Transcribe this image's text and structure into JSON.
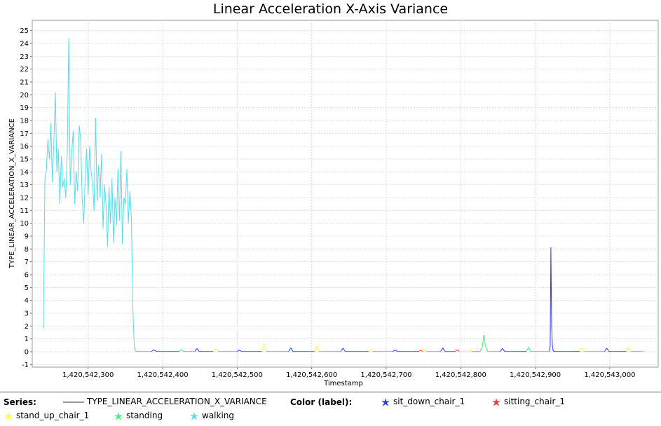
{
  "chart_data": {
    "type": "line",
    "title": "Linear Acceleration X-Axis Variance",
    "xlabel": "Timestamp",
    "ylabel": "TYPE_LINEAR_ACCELERATION_X_VARIANCE",
    "xlim": [
      1420542225,
      1420543065
    ],
    "ylim": [
      -1.2,
      25.8
    ],
    "x_ticks": [
      "1,420,542,300",
      "1,420,542,400",
      "1,420,542,500",
      "1,420,542,600",
      "1,420,542,700",
      "1,420,542,800",
      "1,420,542,900",
      "1,420,543,000"
    ],
    "x_tick_values": [
      1420542300,
      1420542400,
      1420542500,
      1420542600,
      1420542700,
      1420542800,
      1420542900,
      1420543000
    ],
    "y_ticks": [
      -1,
      0,
      1,
      2,
      3,
      4,
      5,
      6,
      7,
      8,
      9,
      10,
      11,
      12,
      13,
      14,
      15,
      16,
      17,
      18,
      19,
      20,
      21,
      22,
      23,
      24,
      25
    ],
    "grid": true,
    "legend_position": "bottom",
    "series_name": "TYPE_LINEAR_ACCELERATION_X_VARIANCE",
    "color_labels": [
      {
        "label": "sit_down_chair_1",
        "color": "#3333ff"
      },
      {
        "label": "sitting_chair_1",
        "color": "#ff3333"
      },
      {
        "label": "stand_up_chair_1",
        "color": "#ffff33"
      },
      {
        "label": "standing",
        "color": "#33ff77"
      },
      {
        "label": "walking",
        "color": "#55ddee"
      }
    ],
    "segments": [
      {
        "label": "walking",
        "x": [
          1420542240,
          1420542242,
          1420542244,
          1420542246,
          1420542248,
          1420542250,
          1420542252,
          1420542254,
          1420542256,
          1420542258,
          1420542260,
          1420542262,
          1420542264,
          1420542266,
          1420542268,
          1420542270,
          1420542272,
          1420542274,
          1420542276,
          1420542278,
          1420542280,
          1420542282,
          1420542284,
          1420542286,
          1420542288,
          1420542290,
          1420542292,
          1420542294,
          1420542296,
          1420542298,
          1420542300,
          1420542302,
          1420542304,
          1420542306,
          1420542308,
          1420542310,
          1420542312,
          1420542314,
          1420542316,
          1420542318,
          1420542320,
          1420542322,
          1420542324,
          1420542326,
          1420542328,
          1420542330,
          1420542332,
          1420542334,
          1420542336,
          1420542338,
          1420542340,
          1420542342,
          1420542344,
          1420542346,
          1420542348,
          1420542350,
          1420542352,
          1420542354,
          1420542356,
          1420542358,
          1420542360,
          1420542361,
          1420542362,
          1420542363,
          1420542364
        ],
        "y": [
          1.8,
          13.5,
          14.2,
          16.5,
          15.0,
          17.8,
          13.2,
          16.2,
          20.2,
          14.0,
          15.8,
          11.5,
          15.2,
          12.8,
          13.5,
          12.0,
          15.5,
          24.4,
          13.0,
          15.5,
          17.2,
          11.5,
          14.0,
          12.5,
          17.6,
          16.5,
          12.0,
          10.0,
          13.5,
          15.8,
          12.2,
          16.0,
          14.0,
          13.2,
          11.0,
          18.2,
          11.8,
          14.5,
          12.0,
          15.4,
          9.6,
          13.0,
          11.5,
          8.2,
          12.8,
          10.0,
          13.5,
          8.5,
          12.0,
          9.8,
          14.2,
          10.2,
          15.6,
          8.4,
          12.0,
          11.5,
          14.2,
          10.0,
          12.5,
          10.5,
          3.5,
          1.8,
          0.5,
          0.1,
          0.02
        ]
      },
      {
        "label": "standing",
        "x": [
          1420542364,
          1420542385
        ],
        "y": [
          0.02,
          0.02
        ]
      },
      {
        "label": "sit_down_chair_1",
        "x": [
          1420542385,
          1420542388,
          1420542392
        ],
        "y": [
          0.02,
          0.15,
          0.02
        ]
      },
      {
        "label": "sitting_chair_1",
        "x": [
          1420542392,
          1420542422
        ],
        "y": [
          0.02,
          0.02
        ]
      },
      {
        "label": "standing",
        "x": [
          1420542422,
          1420542425,
          1420542428,
          1420542443
        ],
        "y": [
          0.02,
          0.15,
          0.02,
          0.02
        ]
      },
      {
        "label": "sit_down_chair_1",
        "x": [
          1420542443,
          1420542446,
          1420542449
        ],
        "y": [
          0.02,
          0.25,
          0.02
        ]
      },
      {
        "label": "sitting_chair_1",
        "x": [
          1420542449,
          1420542468
        ],
        "y": [
          0.02,
          0.02
        ]
      },
      {
        "label": "stand_up_chair_1",
        "x": [
          1420542468,
          1420542471,
          1420542474
        ],
        "y": [
          0.02,
          0.2,
          0.02
        ]
      },
      {
        "label": "standing",
        "x": [
          1420542474,
          1420542500
        ],
        "y": [
          0.02,
          0.02
        ]
      },
      {
        "label": "sit_down_chair_1",
        "x": [
          1420542500,
          1420542503,
          1420542506
        ],
        "y": [
          0.02,
          0.12,
          0.02
        ]
      },
      {
        "label": "sitting_chair_1",
        "x": [
          1420542506,
          1420542533
        ],
        "y": [
          0.02,
          0.02
        ]
      },
      {
        "label": "stand_up_chair_1",
        "x": [
          1420542533,
          1420542536,
          1420542539
        ],
        "y": [
          0.02,
          0.6,
          0.02
        ]
      },
      {
        "label": "standing",
        "x": [
          1420542539,
          1420542569
        ],
        "y": [
          0.02,
          0.02
        ]
      },
      {
        "label": "sit_down_chair_1",
        "x": [
          1420542569,
          1420542572,
          1420542575
        ],
        "y": [
          0.02,
          0.3,
          0.02
        ]
      },
      {
        "label": "sitting_chair_1",
        "x": [
          1420542575,
          1420542604
        ],
        "y": [
          0.02,
          0.02
        ]
      },
      {
        "label": "stand_up_chair_1",
        "x": [
          1420542604,
          1420542607,
          1420542610
        ],
        "y": [
          0.02,
          0.45,
          0.02
        ]
      },
      {
        "label": "standing",
        "x": [
          1420542610,
          1420542639
        ],
        "y": [
          0.02,
          0.02
        ]
      },
      {
        "label": "sit_down_chair_1",
        "x": [
          1420542639,
          1420542642,
          1420542645
        ],
        "y": [
          0.02,
          0.28,
          0.02
        ]
      },
      {
        "label": "sitting_chair_1",
        "x": [
          1420542645,
          1420542676
        ],
        "y": [
          0.02,
          0.02
        ]
      },
      {
        "label": "stand_up_chair_1",
        "x": [
          1420542676,
          1420542679,
          1420542682
        ],
        "y": [
          0.02,
          0.1,
          0.02
        ]
      },
      {
        "label": "standing",
        "x": [
          1420542682,
          1420542709
        ],
        "y": [
          0.02,
          0.02
        ]
      },
      {
        "label": "sit_down_chair_1",
        "x": [
          1420542709,
          1420542712,
          1420542715
        ],
        "y": [
          0.02,
          0.12,
          0.02
        ]
      },
      {
        "label": "sitting_chair_1",
        "x": [
          1420542715,
          1420542743,
          1420542746,
          1420542749
        ],
        "y": [
          0.02,
          0.02,
          0.1,
          0.02
        ]
      },
      {
        "label": "stand_up_chair_1",
        "x": [
          1420542749,
          1420542752,
          1420542755
        ],
        "y": [
          0.02,
          0.1,
          0.02
        ]
      },
      {
        "label": "standing",
        "x": [
          1420542755,
          1420542773
        ],
        "y": [
          0.02,
          0.02
        ]
      },
      {
        "label": "sit_down_chair_1",
        "x": [
          1420542773,
          1420542776,
          1420542779
        ],
        "y": [
          0.02,
          0.3,
          0.02
        ]
      },
      {
        "label": "sitting_chair_1",
        "x": [
          1420542779,
          1420542792,
          1420542795,
          1420542798
        ],
        "y": [
          0.02,
          0.02,
          0.15,
          0.02
        ]
      },
      {
        "label": "stand_up_chair_1",
        "x": [
          1420542798,
          1420542811,
          1420542813,
          1420542815
        ],
        "y": [
          0.02,
          0.02,
          0.15,
          0.02
        ]
      },
      {
        "label": "standing",
        "x": [
          1420542815,
          1420542826,
          1420542829,
          1420542831,
          1420542833,
          1420542836,
          1420542853
        ],
        "y": [
          0.02,
          0.02,
          0.4,
          1.3,
          0.5,
          0.02,
          0.02
        ]
      },
      {
        "label": "sit_down_chair_1",
        "x": [
          1420542853,
          1420542856,
          1420542859
        ],
        "y": [
          0.02,
          0.25,
          0.02
        ]
      },
      {
        "label": "sitting_chair_1",
        "x": [
          1420542859,
          1420542888
        ],
        "y": [
          0.02,
          0.02
        ]
      },
      {
        "label": "standing",
        "x": [
          1420542888,
          1420542891,
          1420542894,
          1420542919
        ],
        "y": [
          0.02,
          0.35,
          0.02,
          0.02
        ]
      },
      {
        "label": "sit_down_chair_1",
        "x": [
          1420542919,
          1420542920,
          1420542921,
          1420542922,
          1420542923,
          1420542924,
          1420542925,
          1420542926
        ],
        "y": [
          0.02,
          0.5,
          8.1,
          2.0,
          0.5,
          0.1,
          0.02,
          0.02
        ]
      },
      {
        "label": "sitting_chair_1",
        "x": [
          1420542926,
          1420542960
        ],
        "y": [
          0.02,
          0.02
        ]
      },
      {
        "label": "stand_up_chair_1",
        "x": [
          1420542960,
          1420542963,
          1420542966
        ],
        "y": [
          0.02,
          0.25,
          0.02
        ]
      },
      {
        "label": "standing",
        "x": [
          1420542966,
          1420542993
        ],
        "y": [
          0.02,
          0.02
        ]
      },
      {
        "label": "sit_down_chair_1",
        "x": [
          1420542993,
          1420542996,
          1420542999
        ],
        "y": [
          0.02,
          0.28,
          0.02
        ]
      },
      {
        "label": "sitting_chair_1",
        "x": [
          1420542999,
          1420543022
        ],
        "y": [
          0.02,
          0.02
        ]
      },
      {
        "label": "stand_up_chair_1",
        "x": [
          1420543022,
          1420543025,
          1420543028
        ],
        "y": [
          0.02,
          0.35,
          0.02
        ]
      },
      {
        "label": "standing",
        "x": [
          1420543028,
          1420543045
        ],
        "y": [
          0.02,
          0.02
        ]
      }
    ]
  },
  "legend": {
    "series_heading": "Series:",
    "color_heading": "Color (label):"
  }
}
